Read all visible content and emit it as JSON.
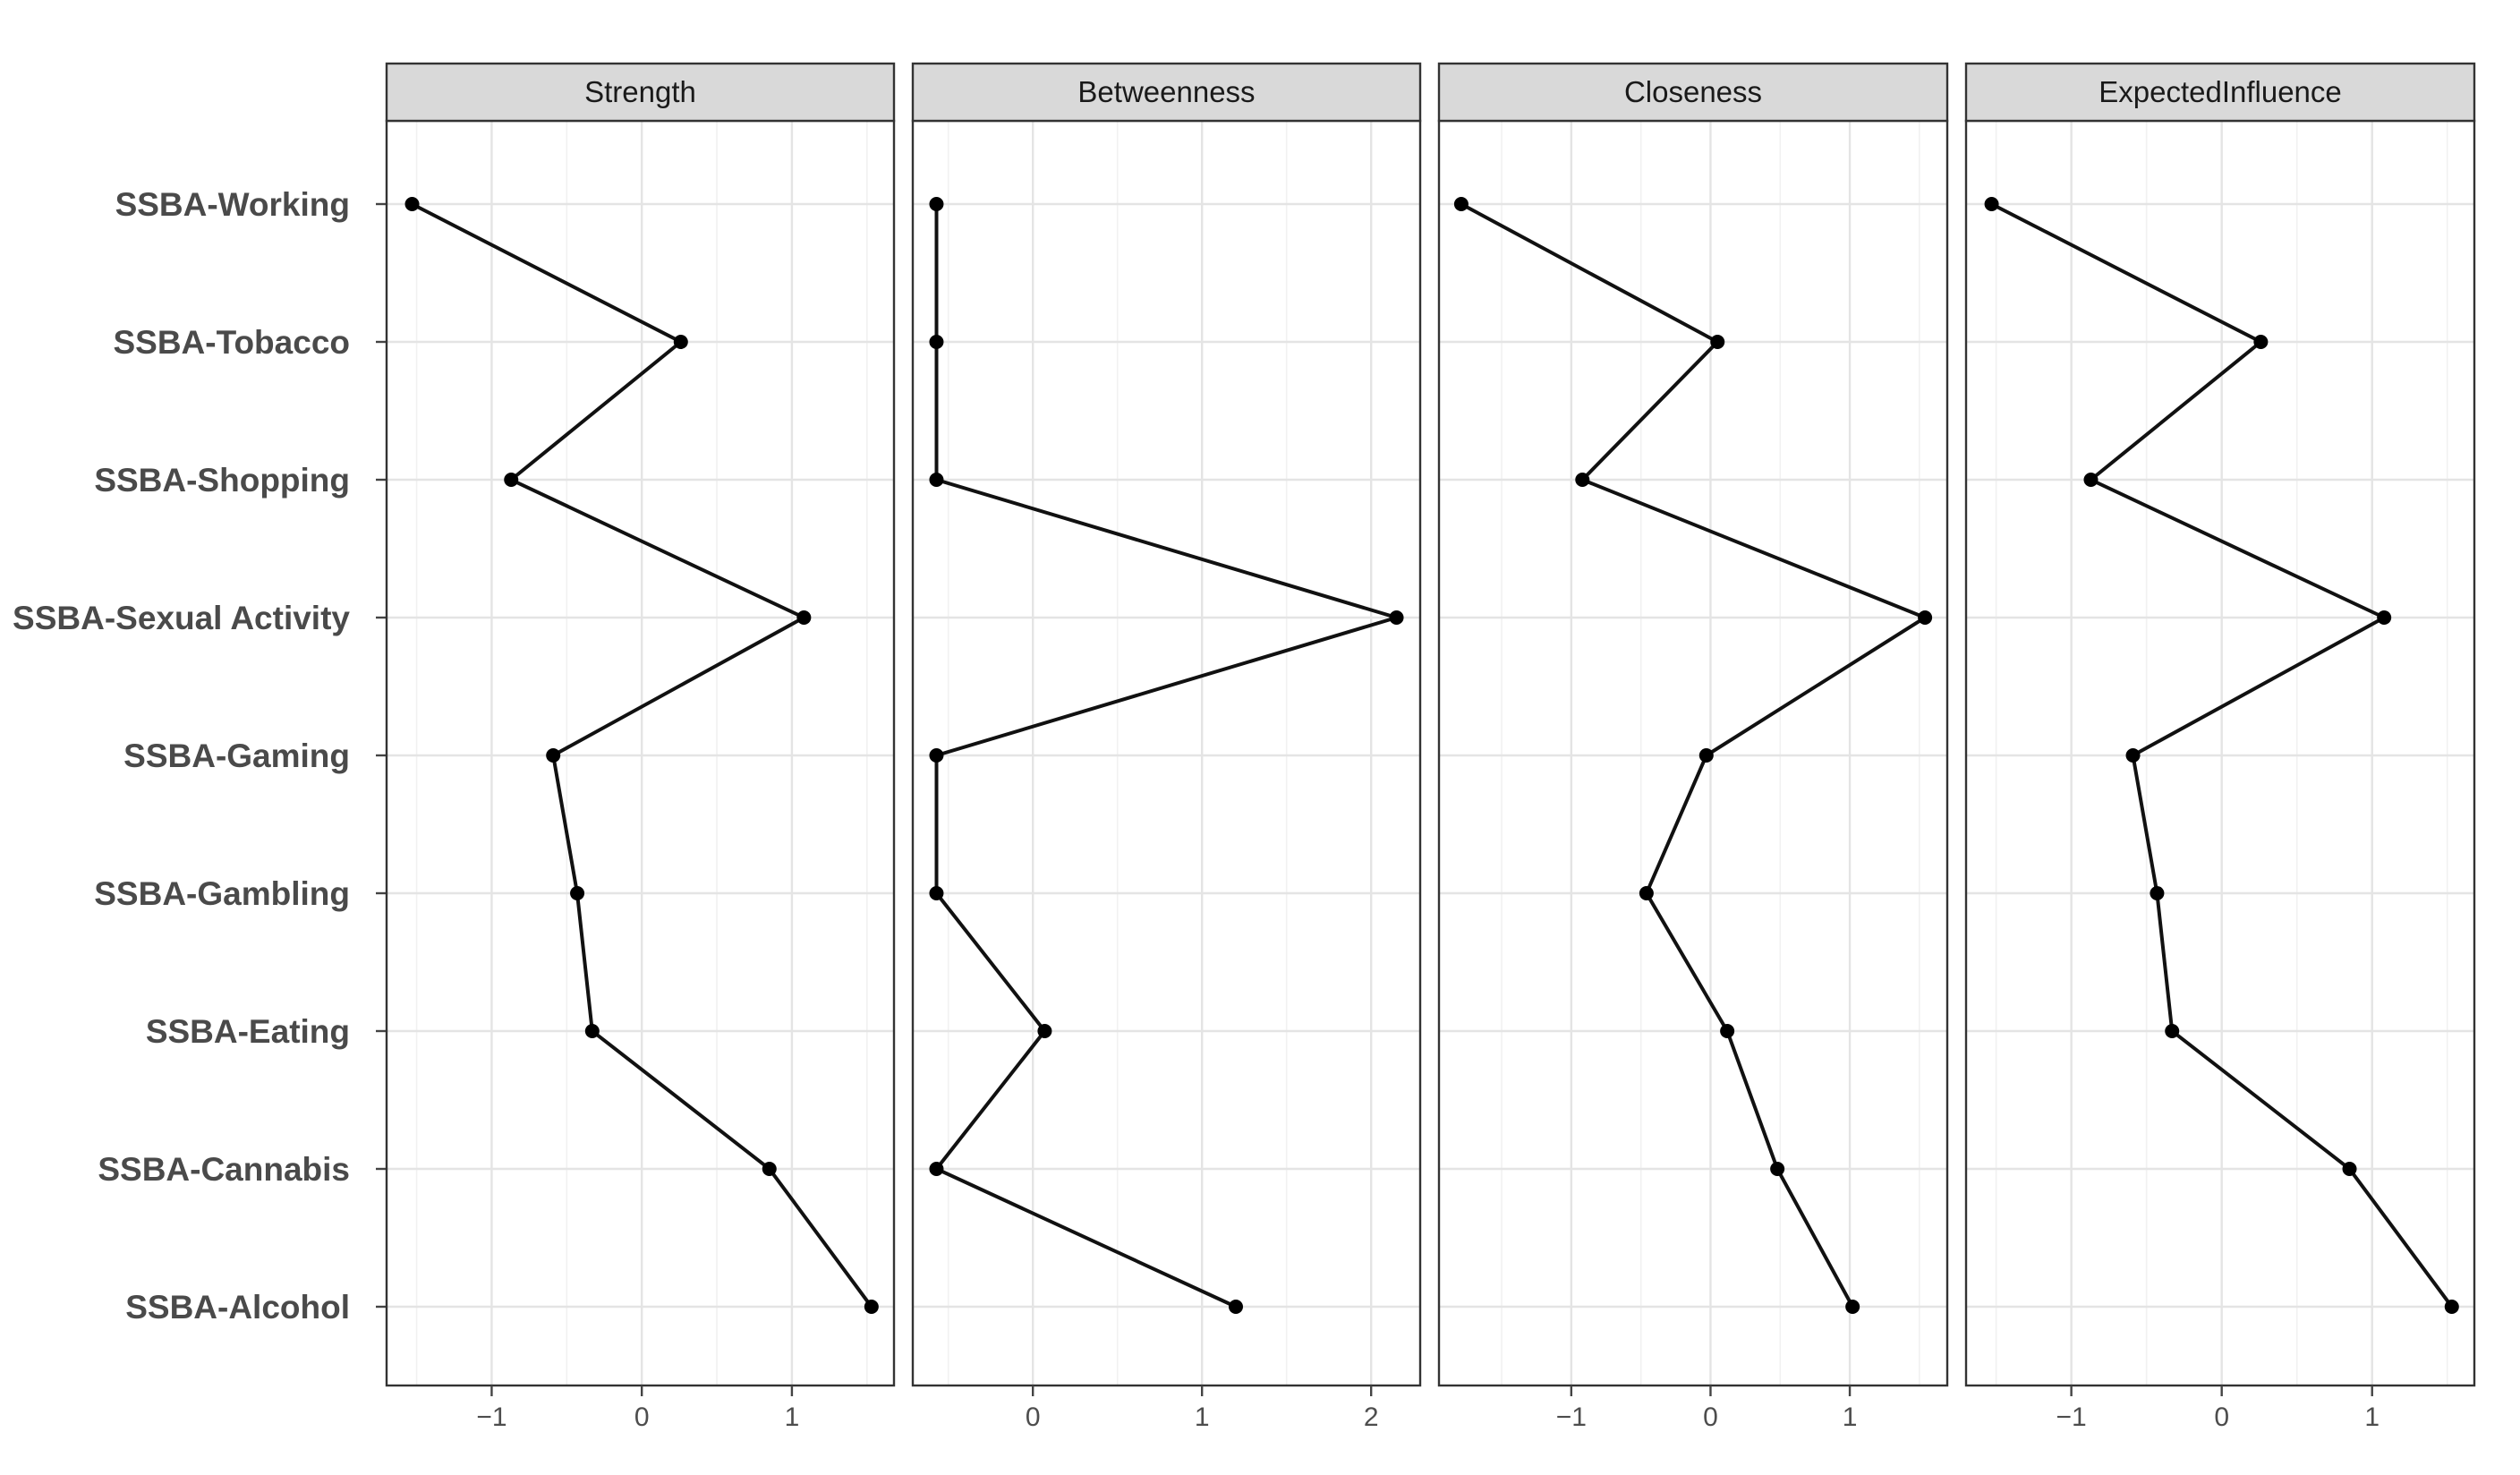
{
  "chart_data": {
    "type": "line",
    "facets": [
      "Strength",
      "Betweenness",
      "Closeness",
      "ExpectedInfluence"
    ],
    "y_categories": [
      "SSBA-Working",
      "SSBA-Tobacco",
      "SSBA-Shopping",
      "SSBA-Sexual Activity",
      "SSBA-Gaming",
      "SSBA-Gambling",
      "SSBA-Eating",
      "SSBA-Cannabis",
      "SSBA-Alcohol"
    ],
    "series": [
      {
        "facet": "Strength",
        "values": [
          -1.53,
          0.26,
          -0.87,
          1.08,
          -0.59,
          -0.43,
          -0.33,
          0.85,
          1.53
        ],
        "xlim": [
          -1.7,
          1.68
        ],
        "ticks": [
          -1,
          0,
          1
        ],
        "tick_labels": [
          "−1",
          "0",
          "1"
        ]
      },
      {
        "facet": "Betweenness",
        "values": [
          -0.57,
          -0.57,
          -0.57,
          2.15,
          -0.57,
          -0.57,
          0.07,
          -0.57,
          1.2
        ],
        "xlim": [
          -0.71,
          2.29
        ],
        "ticks": [
          0,
          1,
          2
        ],
        "tick_labels": [
          "0",
          "1",
          "2"
        ]
      },
      {
        "facet": "Closeness",
        "values": [
          -1.79,
          0.05,
          -0.92,
          1.54,
          -0.03,
          -0.46,
          0.12,
          0.48,
          1.02
        ],
        "xlim": [
          -1.95,
          1.7
        ],
        "ticks": [
          -1,
          0,
          1
        ],
        "tick_labels": [
          "−1",
          "0",
          "1"
        ]
      },
      {
        "facet": "ExpectedInfluence",
        "values": [
          -1.53,
          0.26,
          -0.87,
          1.08,
          -0.59,
          -0.43,
          -0.33,
          0.85,
          1.53
        ],
        "xlim": [
          -1.7,
          1.68
        ],
        "ticks": [
          -1,
          0,
          1
        ],
        "tick_labels": [
          "−1",
          "0",
          "1"
        ]
      }
    ],
    "xlabel": "",
    "ylabel": "",
    "grid": true,
    "theme": "bw",
    "colors": {
      "line": "#111111",
      "point": "#000000",
      "strip_fill": "#d9d9d9",
      "panel_border": "#333333",
      "grid": "#e4e4e4"
    }
  }
}
